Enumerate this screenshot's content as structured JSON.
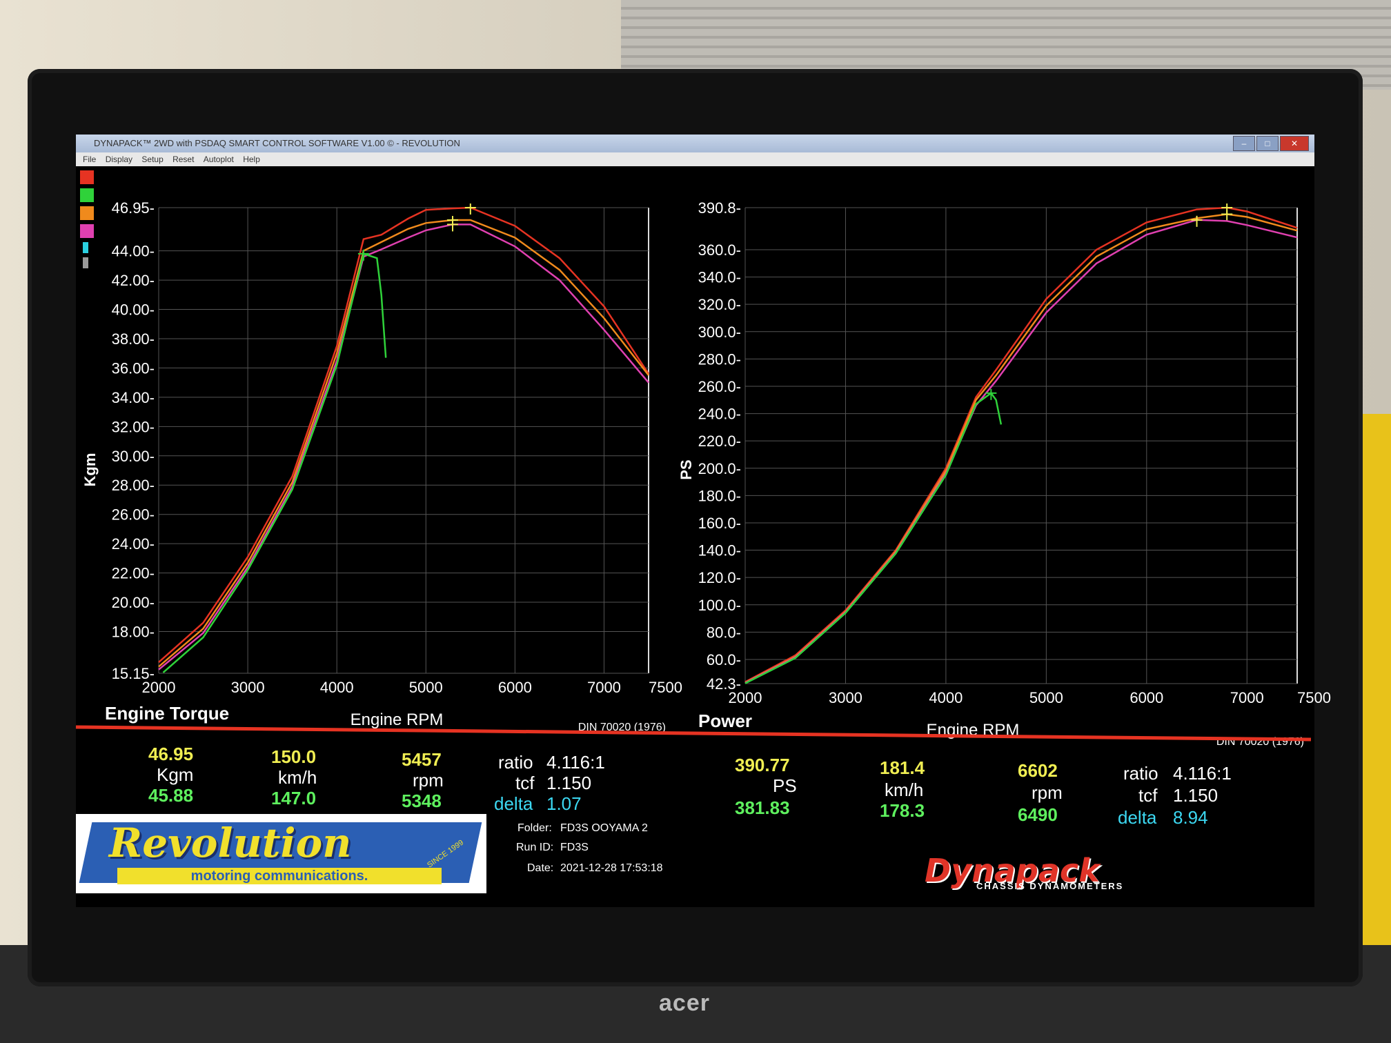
{
  "window": {
    "title": "DYNAPACK™ 2WD with PSDAQ SMART CONTROL SOFTWARE V1.00 © - REVOLUTION",
    "menu": [
      "File",
      "Display",
      "Setup",
      "Reset",
      "Autoplot",
      "Help"
    ]
  },
  "monitor_brand": "acer",
  "legend_colors": [
    "#e63322",
    "#2fd23a",
    "#f08a1c",
    "#e040b0",
    "#2ad0e0",
    "#9a9a9a"
  ],
  "torque": {
    "left_stats": {
      "max_value": "46.95",
      "unit": "Kgm",
      "value2": "45.88"
    },
    "speed": {
      "max_value": "150.0",
      "unit": "km/h",
      "value2": "147.0"
    },
    "rpm": {
      "max_value": "5457",
      "unit": "rpm",
      "value2": "5348"
    },
    "ratio_label": "ratio",
    "ratio_value": "4.116:1",
    "tcf_label": "tcf",
    "tcf_value": "1.150",
    "delta_label": "delta",
    "delta_value": "1.07"
  },
  "power": {
    "left_stats": {
      "max_value": "390.77",
      "unit": "PS",
      "value2": "381.83"
    },
    "speed": {
      "max_value": "181.4",
      "unit": "km/h",
      "value2": "178.3"
    },
    "rpm": {
      "max_value": "6602",
      "unit": "rpm",
      "value2": "6490"
    },
    "ratio_label": "ratio",
    "ratio_value": "4.116:1",
    "tcf_label": "tcf",
    "tcf_value": "1.150",
    "delta_label": "delta",
    "delta_value": "8.94"
  },
  "run_info": {
    "folder_label": "Folder:",
    "folder": "FD3S OOYAMA 2",
    "runid_label": "Run ID:",
    "runid": "FD3S",
    "date_label": "Date:",
    "date": "2021-12-28 17:53:18"
  },
  "logos": {
    "revolution": "Revolution",
    "revolution_sub": "motoring communications.",
    "revolution_since": "SINCE 1999",
    "dynapack": "Dynapack",
    "dynapack_sub": "CHASSIS DYNAMOMETERS"
  },
  "chart_data": [
    {
      "type": "line",
      "title": "Engine Torque",
      "xlabel": "Engine RPM",
      "ylabel": "Kgm",
      "note": "DIN 70020 (1976)",
      "xlim": [
        2000,
        7500
      ],
      "ylim": [
        15.15,
        46.95
      ],
      "x_ticks": [
        "2000",
        "3000",
        "4000",
        "5000",
        "6000",
        "7000",
        "7500"
      ],
      "y_ticks": [
        "46.95",
        "44.00",
        "42.00",
        "40.00",
        "38.00",
        "36.00",
        "34.00",
        "32.00",
        "30.00",
        "28.00",
        "26.00",
        "24.00",
        "22.00",
        "20.00",
        "18.00",
        "15.15"
      ],
      "series": [
        {
          "color": "#e63322",
          "x": [
            2000,
            2500,
            3000,
            3500,
            4000,
            4300,
            4500,
            4800,
            5000,
            5300,
            5500,
            6000,
            6500,
            7000,
            7500
          ],
          "y": [
            15.9,
            18.6,
            23.1,
            28.6,
            37.5,
            44.8,
            45.1,
            46.2,
            46.8,
            46.9,
            46.95,
            45.7,
            43.5,
            40.2,
            35.6
          ]
        },
        {
          "color": "#f08a1c",
          "x": [
            2000,
            2500,
            3000,
            3500,
            4000,
            4300,
            4500,
            4800,
            5000,
            5300,
            5500,
            6000,
            6500,
            7000,
            7500
          ],
          "y": [
            15.6,
            18.2,
            22.7,
            28.2,
            37.0,
            44.0,
            44.6,
            45.5,
            45.9,
            46.1,
            46.1,
            44.9,
            42.7,
            39.4,
            35.5
          ]
        },
        {
          "color": "#e040b0",
          "x": [
            2000,
            2500,
            3000,
            3500,
            4000,
            4300,
            4500,
            4800,
            5000,
            5300,
            5500,
            6000,
            6500,
            7000,
            7500
          ],
          "y": [
            15.4,
            17.9,
            22.4,
            27.9,
            36.5,
            43.6,
            44.1,
            44.9,
            45.4,
            45.8,
            45.8,
            44.3,
            42.0,
            38.6,
            35.0
          ]
        },
        {
          "color": "#2fd23a",
          "x": [
            2050,
            2500,
            3000,
            3500,
            4000,
            4300,
            4450,
            4500,
            4550
          ],
          "y": [
            15.2,
            17.6,
            22.2,
            27.7,
            36.2,
            43.8,
            43.5,
            41.0,
            36.7
          ]
        }
      ]
    },
    {
      "type": "line",
      "title": "Power",
      "xlabel": "Engine RPM",
      "ylabel": "PS",
      "note": "DIN 70020 (1976)",
      "xlim": [
        2000,
        7500
      ],
      "ylim": [
        42.3,
        390.8
      ],
      "x_ticks": [
        "2000",
        "3000",
        "4000",
        "5000",
        "6000",
        "7000",
        "7500"
      ],
      "y_ticks": [
        "390.8",
        "360.0",
        "340.0",
        "320.0",
        "300.0",
        "280.0",
        "260.0",
        "240.0",
        "220.0",
        "200.0",
        "180.0",
        "160.0",
        "140.0",
        "120.0",
        "100.0",
        "80.0",
        "60.0",
        "42.3"
      ],
      "series": [
        {
          "color": "#e63322",
          "x": [
            2000,
            2500,
            3000,
            3500,
            4000,
            4300,
            4500,
            5000,
            5500,
            6000,
            6500,
            6800,
            7000,
            7500
          ],
          "y": [
            43.5,
            63.0,
            96.0,
            140.0,
            200.0,
            252.0,
            272.0,
            324.0,
            360.0,
            380.0,
            389.5,
            390.8,
            388.0,
            376.0
          ]
        },
        {
          "color": "#f08a1c",
          "x": [
            2000,
            2500,
            3000,
            3500,
            4000,
            4300,
            4500,
            5000,
            5500,
            6000,
            6500,
            6800,
            7000,
            7500
          ],
          "y": [
            43.0,
            62.0,
            95.0,
            139.0,
            198.0,
            250.0,
            268.0,
            319.0,
            355.0,
            375.0,
            383.0,
            386.0,
            384.0,
            374.0
          ]
        },
        {
          "color": "#e040b0",
          "x": [
            2000,
            2500,
            3000,
            3500,
            4000,
            4300,
            4500,
            5000,
            5500,
            6000,
            6500,
            6800,
            7000,
            7500
          ],
          "y": [
            42.8,
            61.5,
            94.5,
            138.0,
            196.0,
            246.0,
            264.0,
            314.0,
            350.0,
            371.0,
            381.8,
            381.0,
            378.0,
            369.0
          ]
        },
        {
          "color": "#2fd23a",
          "x": [
            2000,
            2500,
            3000,
            3500,
            4000,
            4300,
            4450,
            4500,
            4550
          ],
          "y": [
            42.5,
            61.0,
            94.0,
            137.5,
            195.0,
            247.0,
            255.0,
            250.0,
            232.0
          ]
        }
      ]
    }
  ]
}
